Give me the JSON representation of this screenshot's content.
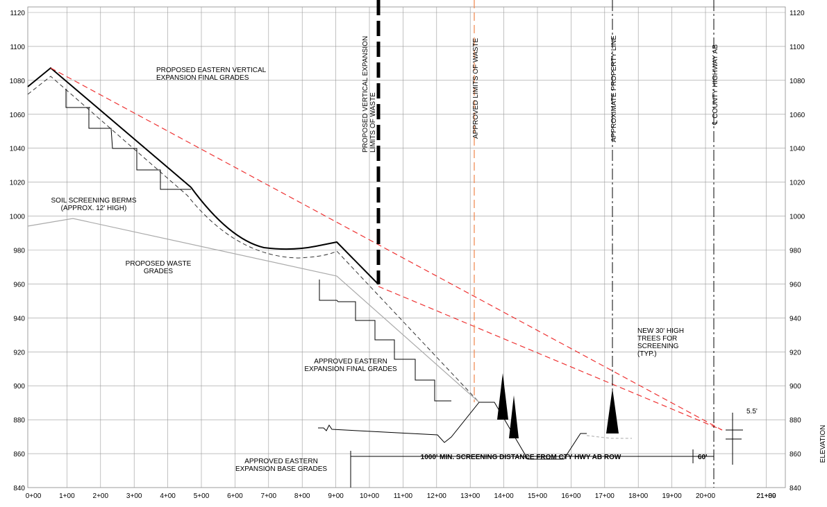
{
  "drawing": {
    "y_labels": [
      "1120",
      "1100",
      "1080",
      "1060",
      "1040",
      "1020",
      "1000",
      "980",
      "960",
      "940",
      "920",
      "900",
      "880",
      "860",
      "840"
    ],
    "x_labels": [
      "0+00",
      "1+00",
      "2+00",
      "3+00",
      "4+00",
      "5+00",
      "6+00",
      "7+00",
      "8+00",
      "9+00",
      "10+00",
      "11+00",
      "12+00",
      "13+00",
      "14+00",
      "15+00",
      "16+00",
      "17+00",
      "18+00",
      "19+00",
      "20+00",
      "21+00",
      "21+89"
    ],
    "notes": [
      {
        "lines": [
          "PROPOSED EASTERN VERTICAL",
          "EXPANSION FINAL GRADES"
        ]
      },
      {
        "lines": [
          "SOIL SCREENING BERMS",
          "(APPROX. 12' HIGH)"
        ]
      },
      {
        "lines": [
          "PROPOSED WASTE",
          "GRADES"
        ]
      },
      {
        "lines": [
          "APPROVED EASTERN",
          "EXPANSION FINAL GRADES"
        ]
      },
      {
        "lines": [
          "NEW 30' HIGH",
          "TREES FOR",
          "SCREENING",
          "(TYP.)"
        ]
      },
      {
        "lines": [
          "APPROVED EASTERN",
          "EXPANSION BASE GRADES"
        ]
      }
    ],
    "vertical_labels": [
      {
        "lines": [
          "PROPOSED VERTICAL EXPANSION",
          "LIMITS OF WASTE"
        ]
      },
      {
        "lines": [
          "APPROVED LIMITS OF WASTE"
        ]
      },
      {
        "lines": [
          "APPROXIMATE PROPERTY LINE"
        ]
      },
      {
        "lines": [
          "℄ COUNTY HIGHWAY AB"
        ]
      }
    ],
    "dimension": "1000' MIN. SCREENING DISTANCE FROM CTY HWY AB ROW",
    "dimension_right": "60'",
    "height_dim": "5.5'",
    "axis_title": "ELEVATION"
  }
}
